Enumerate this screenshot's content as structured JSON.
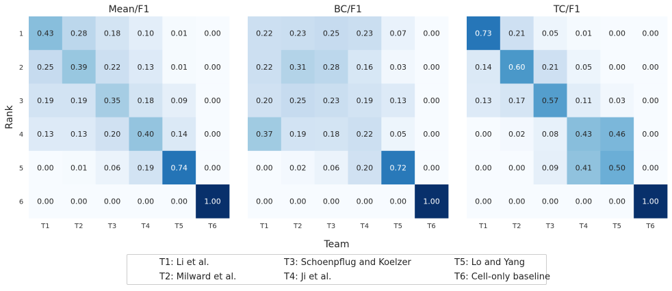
{
  "chart_data": {
    "type": "heatmap",
    "ylabel": "Rank",
    "xlabel": "Team",
    "x_ticks": [
      "T1",
      "T2",
      "T3",
      "T4",
      "T5",
      "T6"
    ],
    "y_ticks": [
      "1",
      "2",
      "3",
      "4",
      "5",
      "6"
    ],
    "colormap": "Blues",
    "value_range": [
      0,
      1
    ],
    "panels": [
      {
        "title": "Mean/F1",
        "values": [
          [
            0.43,
            0.28,
            0.18,
            0.1,
            0.01,
            0.0
          ],
          [
            0.25,
            0.39,
            0.22,
            0.13,
            0.01,
            0.0
          ],
          [
            0.19,
            0.19,
            0.35,
            0.18,
            0.09,
            0.0
          ],
          [
            0.13,
            0.13,
            0.2,
            0.4,
            0.14,
            0.0
          ],
          [
            0.0,
            0.01,
            0.06,
            0.19,
            0.74,
            0.0
          ],
          [
            0.0,
            0.0,
            0.0,
            0.0,
            0.0,
            1.0
          ]
        ]
      },
      {
        "title": "BC/F1",
        "values": [
          [
            0.22,
            0.23,
            0.25,
            0.23,
            0.07,
            0.0
          ],
          [
            0.22,
            0.31,
            0.28,
            0.16,
            0.03,
            0.0
          ],
          [
            0.2,
            0.25,
            0.23,
            0.19,
            0.13,
            0.0
          ],
          [
            0.37,
            0.19,
            0.18,
            0.22,
            0.05,
            0.0
          ],
          [
            0.0,
            0.02,
            0.06,
            0.2,
            0.72,
            0.0
          ],
          [
            0.0,
            0.0,
            0.0,
            0.0,
            0.0,
            1.0
          ]
        ]
      },
      {
        "title": "TC/F1",
        "values": [
          [
            0.73,
            0.21,
            0.05,
            0.01,
            0.0,
            0.0
          ],
          [
            0.14,
            0.6,
            0.21,
            0.05,
            0.0,
            0.0
          ],
          [
            0.13,
            0.17,
            0.57,
            0.11,
            0.03,
            0.0
          ],
          [
            0.0,
            0.02,
            0.08,
            0.43,
            0.46,
            0.0
          ],
          [
            0.0,
            0.0,
            0.09,
            0.41,
            0.5,
            0.0
          ],
          [
            0.0,
            0.0,
            0.0,
            0.0,
            0.0,
            1.0
          ]
        ]
      }
    ],
    "legend": [
      "T1: Li et al.",
      "T2: Milward et al.",
      "T3: Schoenpflug and Koelzer",
      "T4: Ji et al.",
      "T5: Lo and Yang",
      "T6: Cell-only baseline"
    ],
    "legend_placement": "bottom-center"
  }
}
